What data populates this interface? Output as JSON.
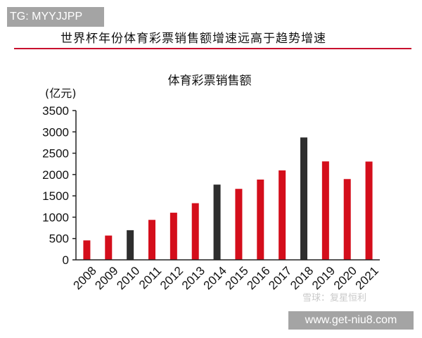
{
  "tg_label": "TG: MYYJJPP",
  "header_title": "世界杯年份体育彩票销售额增速远高于趋势增速",
  "watermark_text": "雪球：复星恒利",
  "url_label": "www.get-niu8.com",
  "colors": {
    "red": "#d40e1b",
    "dark": "#2e2e2e",
    "accent_rule": "#c8102e"
  },
  "chart_data": {
    "type": "bar",
    "title": "体育彩票销售额",
    "ylabel": "(亿元)",
    "xlabel": "",
    "ylim": [
      0,
      3500
    ],
    "yticks": [
      0,
      500,
      1000,
      1500,
      2000,
      2500,
      3000,
      3500
    ],
    "grid": false,
    "categories": [
      "2008",
      "2009",
      "2010",
      "2011",
      "2012",
      "2013",
      "2014",
      "2015",
      "2016",
      "2017",
      "2018",
      "2019",
      "2020",
      "2021"
    ],
    "values": [
      456,
      569,
      695,
      937,
      1105,
      1328,
      1764,
      1664,
      1882,
      2097,
      2869,
      2308,
      1894,
      2304
    ],
    "world_cup_years": [
      "2010",
      "2014",
      "2018"
    ]
  }
}
